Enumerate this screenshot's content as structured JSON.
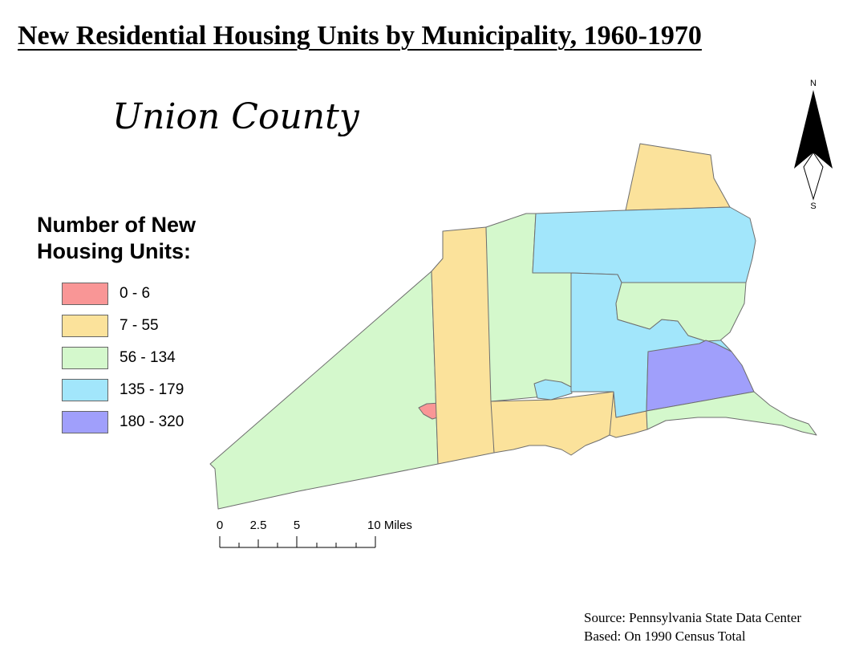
{
  "title": "New Residential Housing Units by Municipality, 1960-1970",
  "subtitle": "Union County",
  "legend": {
    "title_line1": "Number of New",
    "title_line2": "Housing Units:",
    "items": [
      {
        "label": "0 - 6",
        "color": "#f99696"
      },
      {
        "label": "7 - 55",
        "color": "#fbe29b"
      },
      {
        "label": "56 - 134",
        "color": "#d4f8cc"
      },
      {
        "label": "135 - 179",
        "color": "#a2e6fb"
      },
      {
        "label": "180 - 320",
        "color": "#a09ffb"
      }
    ]
  },
  "north_arrow": {
    "n": "N",
    "s": "S"
  },
  "scale_bar": {
    "ticks": [
      "0",
      "2.5",
      "5",
      "10 Miles"
    ]
  },
  "source": {
    "line1": "Source: Pennsylvania State Data Center",
    "line2": "Based: On 1990 Census Total"
  }
}
